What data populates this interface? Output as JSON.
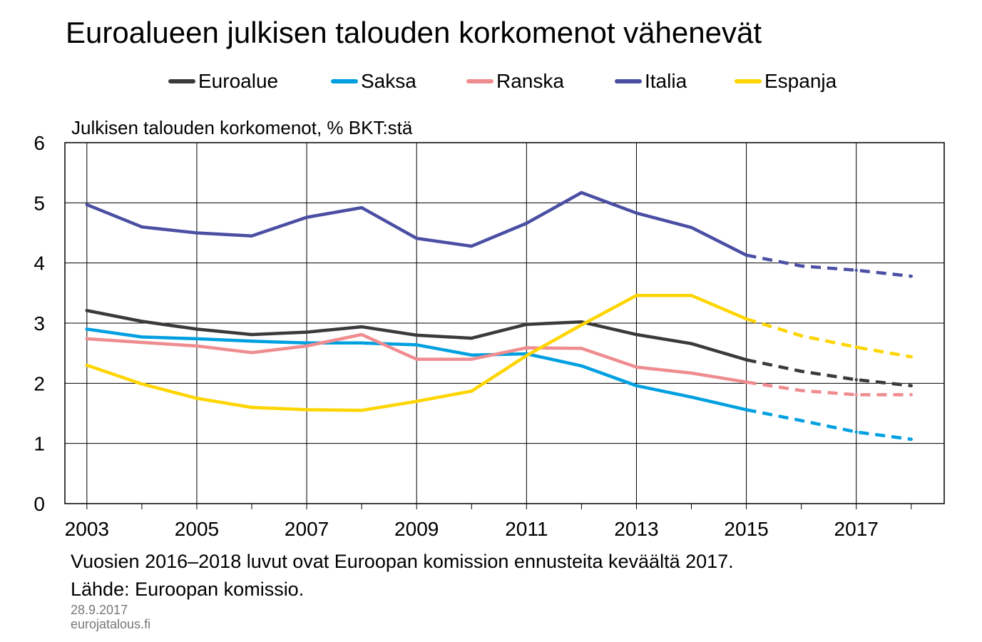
{
  "chart_data": {
    "type": "line",
    "title": "Euroalueen julkisen talouden korkomenot vähenevät",
    "ylabel": "Julkisen talouden korkomenot, % BKT:stä",
    "xlabel": "",
    "ylim": [
      0,
      6
    ],
    "yticks": [
      "0",
      "1",
      "2",
      "3",
      "4",
      "5",
      "6"
    ],
    "xlim": [
      2002.6,
      2018.6
    ],
    "xticks": [
      "2003",
      "2005",
      "2007",
      "2009",
      "2011",
      "2013",
      "2015",
      "2017"
    ],
    "x": [
      2003,
      2004,
      2005,
      2006,
      2007,
      2008,
      2009,
      2010,
      2011,
      2012,
      2013,
      2014,
      2015,
      2016,
      2017,
      2018
    ],
    "forecast_from": 2015,
    "grid": true,
    "legend_position": "top",
    "series": [
      {
        "name": "Euroalue",
        "color": "#3a3a3a",
        "values": [
          3.21,
          3.03,
          2.9,
          2.81,
          2.85,
          2.94,
          2.8,
          2.75,
          2.98,
          3.02,
          2.81,
          2.66,
          2.39,
          2.2,
          2.06,
          1.96
        ]
      },
      {
        "name": "Saksa",
        "color": "#00a0e0",
        "values": [
          2.9,
          2.77,
          2.74,
          2.7,
          2.67,
          2.67,
          2.64,
          2.47,
          2.49,
          2.29,
          1.96,
          1.77,
          1.56,
          1.38,
          1.19,
          1.07
        ]
      },
      {
        "name": "Ranska",
        "color": "#ef8c8f",
        "values": [
          2.74,
          2.68,
          2.62,
          2.51,
          2.62,
          2.81,
          2.4,
          2.4,
          2.59,
          2.58,
          2.27,
          2.17,
          2.02,
          1.88,
          1.81,
          1.81
        ]
      },
      {
        "name": "Italia",
        "color": "#4b4fa3",
        "values": [
          4.97,
          4.6,
          4.5,
          4.45,
          4.76,
          4.92,
          4.41,
          4.28,
          4.66,
          5.17,
          4.83,
          4.59,
          4.13,
          3.95,
          3.88,
          3.78
        ]
      },
      {
        "name": "Espanja",
        "color": "#ffd500",
        "values": [
          2.3,
          1.99,
          1.75,
          1.6,
          1.56,
          1.55,
          1.7,
          1.87,
          2.46,
          2.97,
          3.46,
          3.46,
          3.07,
          2.79,
          2.6,
          2.44
        ]
      }
    ]
  },
  "notes": {
    "forecast": "Vuosien 2016–2018 luvut ovat Euroopan komission ennusteita keväältä 2017.",
    "source": "Lähde: Euroopan komissio.",
    "date": "28.9.2017",
    "site": "eurojatalous.fi"
  }
}
